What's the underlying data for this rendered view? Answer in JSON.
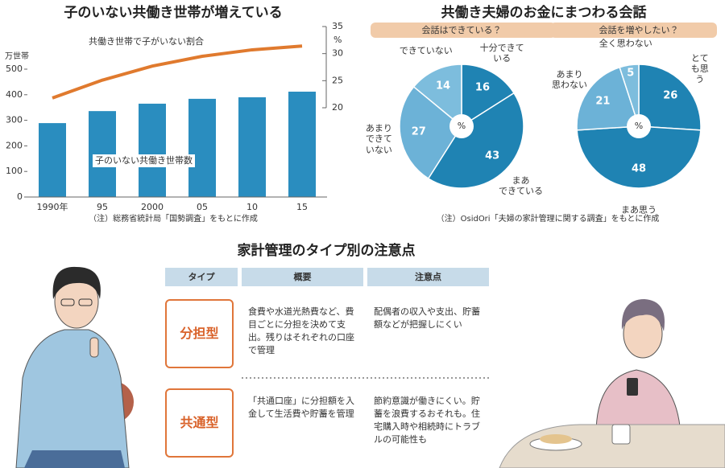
{
  "chart_data": [
    {
      "type": "bar",
      "title": "子のいない共働き世帯が増えている",
      "categories": [
        "1990年",
        "95",
        "2000",
        "05",
        "10",
        "15"
      ],
      "y_unit": "万世帯",
      "y2_unit": "%",
      "series": [
        {
          "name": "子のいない共働き世帯数",
          "color": "#2a8dbf",
          "values": [
            289,
            336,
            365,
            384,
            390,
            412
          ]
        },
        {
          "name": "共働き世帯で子がいない割合",
          "color": "#e07a2e",
          "axis": "y2",
          "values": [
            21.8,
            25.1,
            27.7,
            29.5,
            30.7,
            31.4
          ]
        }
      ],
      "ylim": [
        0,
        500
      ],
      "yticks": [
        0,
        100,
        200,
        300,
        400,
        500
      ],
      "y2lim": [
        20,
        35
      ],
      "y2ticks": [
        20,
        25,
        30,
        35
      ],
      "note": "（注）総務省統計局「国勢調査」をもとに作成"
    },
    {
      "type": "pie",
      "subtitle": "会話はできている？",
      "unit": "%",
      "categories": [
        "十分できて\nいる",
        "まあ\nできている",
        "あまり\nできて\nいない",
        "できていない"
      ],
      "values": [
        16,
        43,
        27,
        14
      ],
      "colors": [
        "#1f83b3",
        "#1f83b3",
        "#6cb2d7",
        "#7dbddd"
      ]
    },
    {
      "type": "pie",
      "subtitle": "会話を増やしたい？",
      "unit": "%",
      "categories": [
        "とても思う",
        "まあ思う",
        "あまり\n思わない",
        "全く思わない"
      ],
      "values": [
        26,
        48,
        21,
        5
      ],
      "colors": [
        "#1f83b3",
        "#1f83b3",
        "#6cb2d7",
        "#7dbddd"
      ]
    }
  ],
  "conversation_panel": {
    "title": "共働き夫婦のお金にまつわる会話",
    "note": "（注）OsidOri「夫婦の家計管理に関する調査」をもとに作成"
  },
  "table": {
    "title": "家計管理のタイプ別の注意点",
    "header": [
      "タイプ",
      "概要",
      "注意点"
    ],
    "rows": [
      [
        "分担型",
        "食費や水道光熱費など、費目ごとに分担を決めて支出。残りはそれぞれの口座で管理",
        "配偶者の収入や支出、貯蓄額などが把握しにくい"
      ],
      [
        "共通型",
        "「共通口座」に分担額を入金して生活費や貯蓄を管理",
        "節約意識が働きにくい。貯蓄を浪費するおそれも。住宅購入時や相続時にトラブルの可能性も"
      ]
    ]
  }
}
